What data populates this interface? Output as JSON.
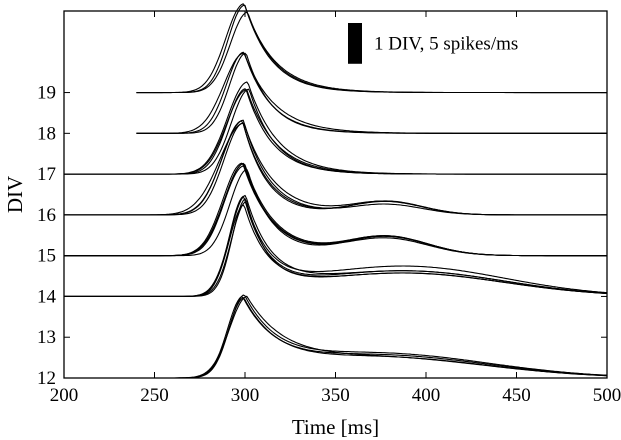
{
  "chart_data": {
    "type": "line",
    "xlabel": "Time [ms]",
    "ylabel": "DIV",
    "xlim": [
      200,
      500
    ],
    "ylim": [
      12,
      21
    ],
    "x_ticks": [
      200,
      250,
      300,
      350,
      400,
      450,
      500
    ],
    "x_tick_labels": [
      "200",
      "250",
      "300",
      "350",
      "400",
      "450",
      "500"
    ],
    "y_ticks": [
      12,
      13,
      14,
      15,
      16,
      17,
      18,
      19
    ],
    "y_tick_labels": [
      "12",
      "13",
      "14",
      "15",
      "16",
      "17",
      "18",
      "19"
    ],
    "grid": false,
    "scale_bar": {
      "label": "1 DIV, 5 spikes/ms",
      "height": 1,
      "placement": "top-right"
    },
    "series": [
      {
        "baseline": 12,
        "baseline_start": 200,
        "peak": {
          "time": 300,
          "amplitude": 1.9,
          "rise_sd": 9,
          "decay_tau": 20
        },
        "late_component": {
          "center": 375,
          "amplitude": 0.55,
          "sd": 60
        },
        "traces": 4
      },
      {
        "baseline": 14,
        "baseline_start": 200,
        "peak": {
          "time": 300,
          "amplitude": 2.2,
          "rise_sd": 8,
          "decay_tau": 13
        },
        "late_component": {
          "center": 388,
          "amplitude": 0.65,
          "sd": 55
        },
        "traces": 5
      },
      {
        "baseline": 15,
        "baseline_start": 200,
        "peak": {
          "time": 300,
          "amplitude": 2.2,
          "rise_sd": 10,
          "decay_tau": 15
        },
        "late_component": {
          "center": 378,
          "amplitude": 0.45,
          "sd": 23
        },
        "traces": 5
      },
      {
        "baseline": 16,
        "baseline_start": 200,
        "peak": {
          "time": 300,
          "amplitude": 2.25,
          "rise_sd": 12,
          "decay_tau": 15
        },
        "late_component": {
          "center": 378,
          "amplitude": 0.3,
          "sd": 20
        },
        "traces": 4
      },
      {
        "baseline": 17,
        "baseline_start": 200,
        "peak": {
          "time": 301,
          "amplitude": 2.15,
          "rise_sd": 11,
          "decay_tau": 16
        },
        "late_component": null,
        "traces": 4
      },
      {
        "baseline": 18,
        "baseline_start": 240,
        "peak": {
          "time": 300,
          "amplitude": 2.1,
          "rise_sd": 10,
          "decay_tau": 15
        },
        "late_component": null,
        "traces": 3
      },
      {
        "baseline": 19,
        "baseline_start": 240,
        "peak": {
          "time": 300,
          "amplitude": 2.05,
          "rise_sd": 10,
          "decay_tau": 16
        },
        "late_component": null,
        "traces": 3
      }
    ]
  }
}
